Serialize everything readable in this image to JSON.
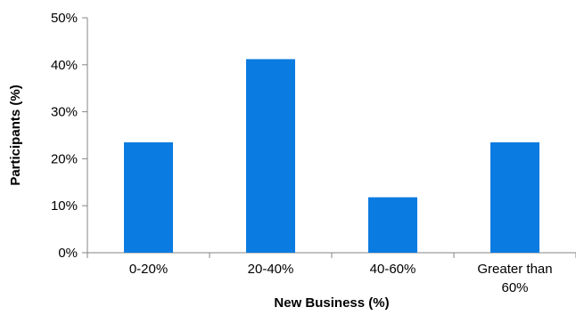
{
  "chart_data": {
    "type": "bar",
    "title": "",
    "xlabel": "New Business (%)",
    "ylabel": "Participants (%)",
    "categories": [
      "0-20%",
      "20-40%",
      "40-60%",
      "Greater than 60%"
    ],
    "category_label_lines": [
      [
        "0-20%"
      ],
      [
        "20-40%"
      ],
      [
        "40-60%"
      ],
      [
        "Greater than",
        "60%"
      ]
    ],
    "values": [
      23.5,
      41.2,
      11.8,
      23.5
    ],
    "ylim": [
      0,
      50
    ],
    "yticks": [
      0,
      10,
      20,
      30,
      40,
      50
    ],
    "ytick_labels": [
      "0%",
      "10%",
      "20%",
      "30%",
      "40%",
      "50%"
    ],
    "grid": false,
    "legend": "none",
    "bar_color": "#0a7be0"
  }
}
